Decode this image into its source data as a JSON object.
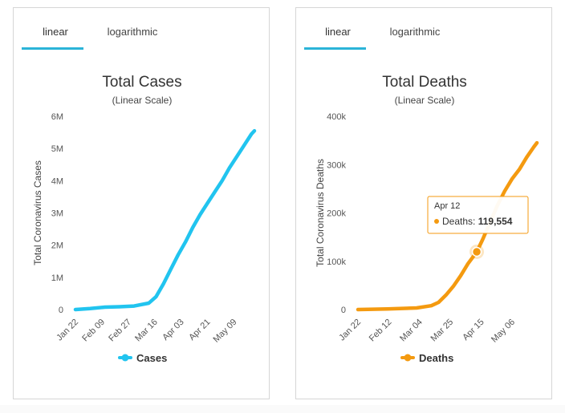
{
  "tabs": {
    "linear": "linear",
    "logarithmic": "logarithmic"
  },
  "tooltip": {
    "date": "Apr 12",
    "label": "Deaths:",
    "value": "119,554",
    "x_day": 81,
    "y_value": 119554
  },
  "chart_data": [
    {
      "type": "line",
      "title": "Total Cases",
      "subtitle": "(Linear Scale)",
      "ylabel": "Total Coronavirus Cases",
      "legend": "Cases",
      "color": "#21c4ef",
      "ylim": [
        0,
        6000000
      ],
      "yticks": [
        0,
        1000000,
        2000000,
        3000000,
        4000000,
        5000000,
        6000000
      ],
      "ytick_labels": [
        "0",
        "1M",
        "2M",
        "3M",
        "4M",
        "5M",
        "6M"
      ],
      "xlim": [
        0,
        122
      ],
      "xticks": [
        0,
        18,
        36,
        54,
        72,
        90,
        108
      ],
      "xtick_labels": [
        "Jan 22",
        "Feb 09",
        "Feb 27",
        "Mar 16",
        "Apr 03",
        "Apr 21",
        "May 09"
      ],
      "x": [
        0,
        10,
        20,
        30,
        40,
        50,
        55,
        60,
        65,
        70,
        75,
        80,
        85,
        90,
        95,
        100,
        105,
        110,
        115,
        120,
        122
      ],
      "values": [
        600,
        30000,
        75000,
        86000,
        110000,
        200000,
        400000,
        800000,
        1250000,
        1700000,
        2100000,
        2550000,
        2950000,
        3300000,
        3650000,
        4000000,
        4400000,
        4750000,
        5100000,
        5450000,
        5550000
      ]
    },
    {
      "type": "line",
      "title": "Total Deaths",
      "subtitle": "(Linear Scale)",
      "ylabel": "Total Coronavirus Deaths",
      "legend": "Deaths",
      "color": "#f49a10",
      "ylim": [
        0,
        400000
      ],
      "yticks": [
        0,
        100000,
        200000,
        300000,
        400000
      ],
      "ytick_labels": [
        "0",
        "100k",
        "200k",
        "300k",
        "400k"
      ],
      "xlim": [
        0,
        122
      ],
      "xticks": [
        0,
        21,
        42,
        63,
        84,
        105
      ],
      "xtick_labels": [
        "Jan 22",
        "Feb 12",
        "Mar 04",
        "Mar 25",
        "Apr 15",
        "May 06"
      ],
      "x": [
        0,
        20,
        40,
        50,
        55,
        60,
        65,
        70,
        75,
        81,
        85,
        90,
        95,
        100,
        105,
        110,
        115,
        120,
        122
      ],
      "values": [
        17,
        1100,
        3300,
        8000,
        15000,
        30000,
        48000,
        70000,
        95000,
        119554,
        145000,
        180000,
        215000,
        245000,
        270000,
        290000,
        315000,
        337000,
        345000
      ]
    }
  ]
}
